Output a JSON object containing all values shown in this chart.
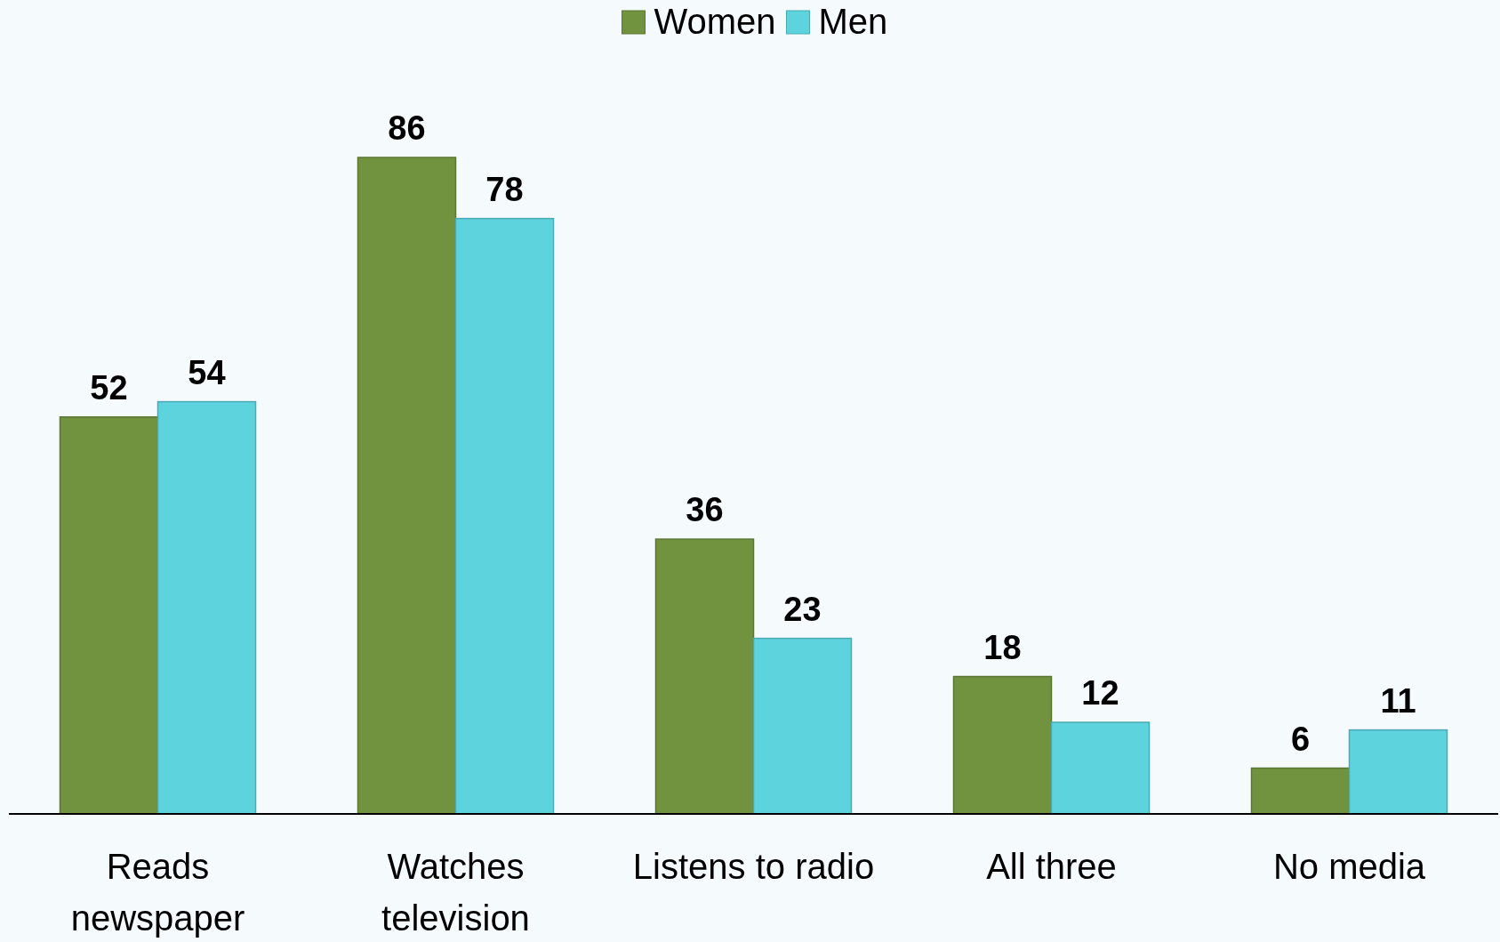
{
  "chart_data": {
    "type": "bar",
    "categories": [
      "Reads newspaper",
      "Watches television",
      "Listens to radio",
      "All three",
      "No media"
    ],
    "series": [
      {
        "name": "Women",
        "color": "#71923f",
        "values": [
          52,
          86,
          36,
          18,
          6
        ]
      },
      {
        "name": "Men",
        "color": "#5dd3de",
        "values": [
          54,
          78,
          23,
          12,
          11
        ]
      }
    ],
    "data_labels": true,
    "legend": "top"
  }
}
